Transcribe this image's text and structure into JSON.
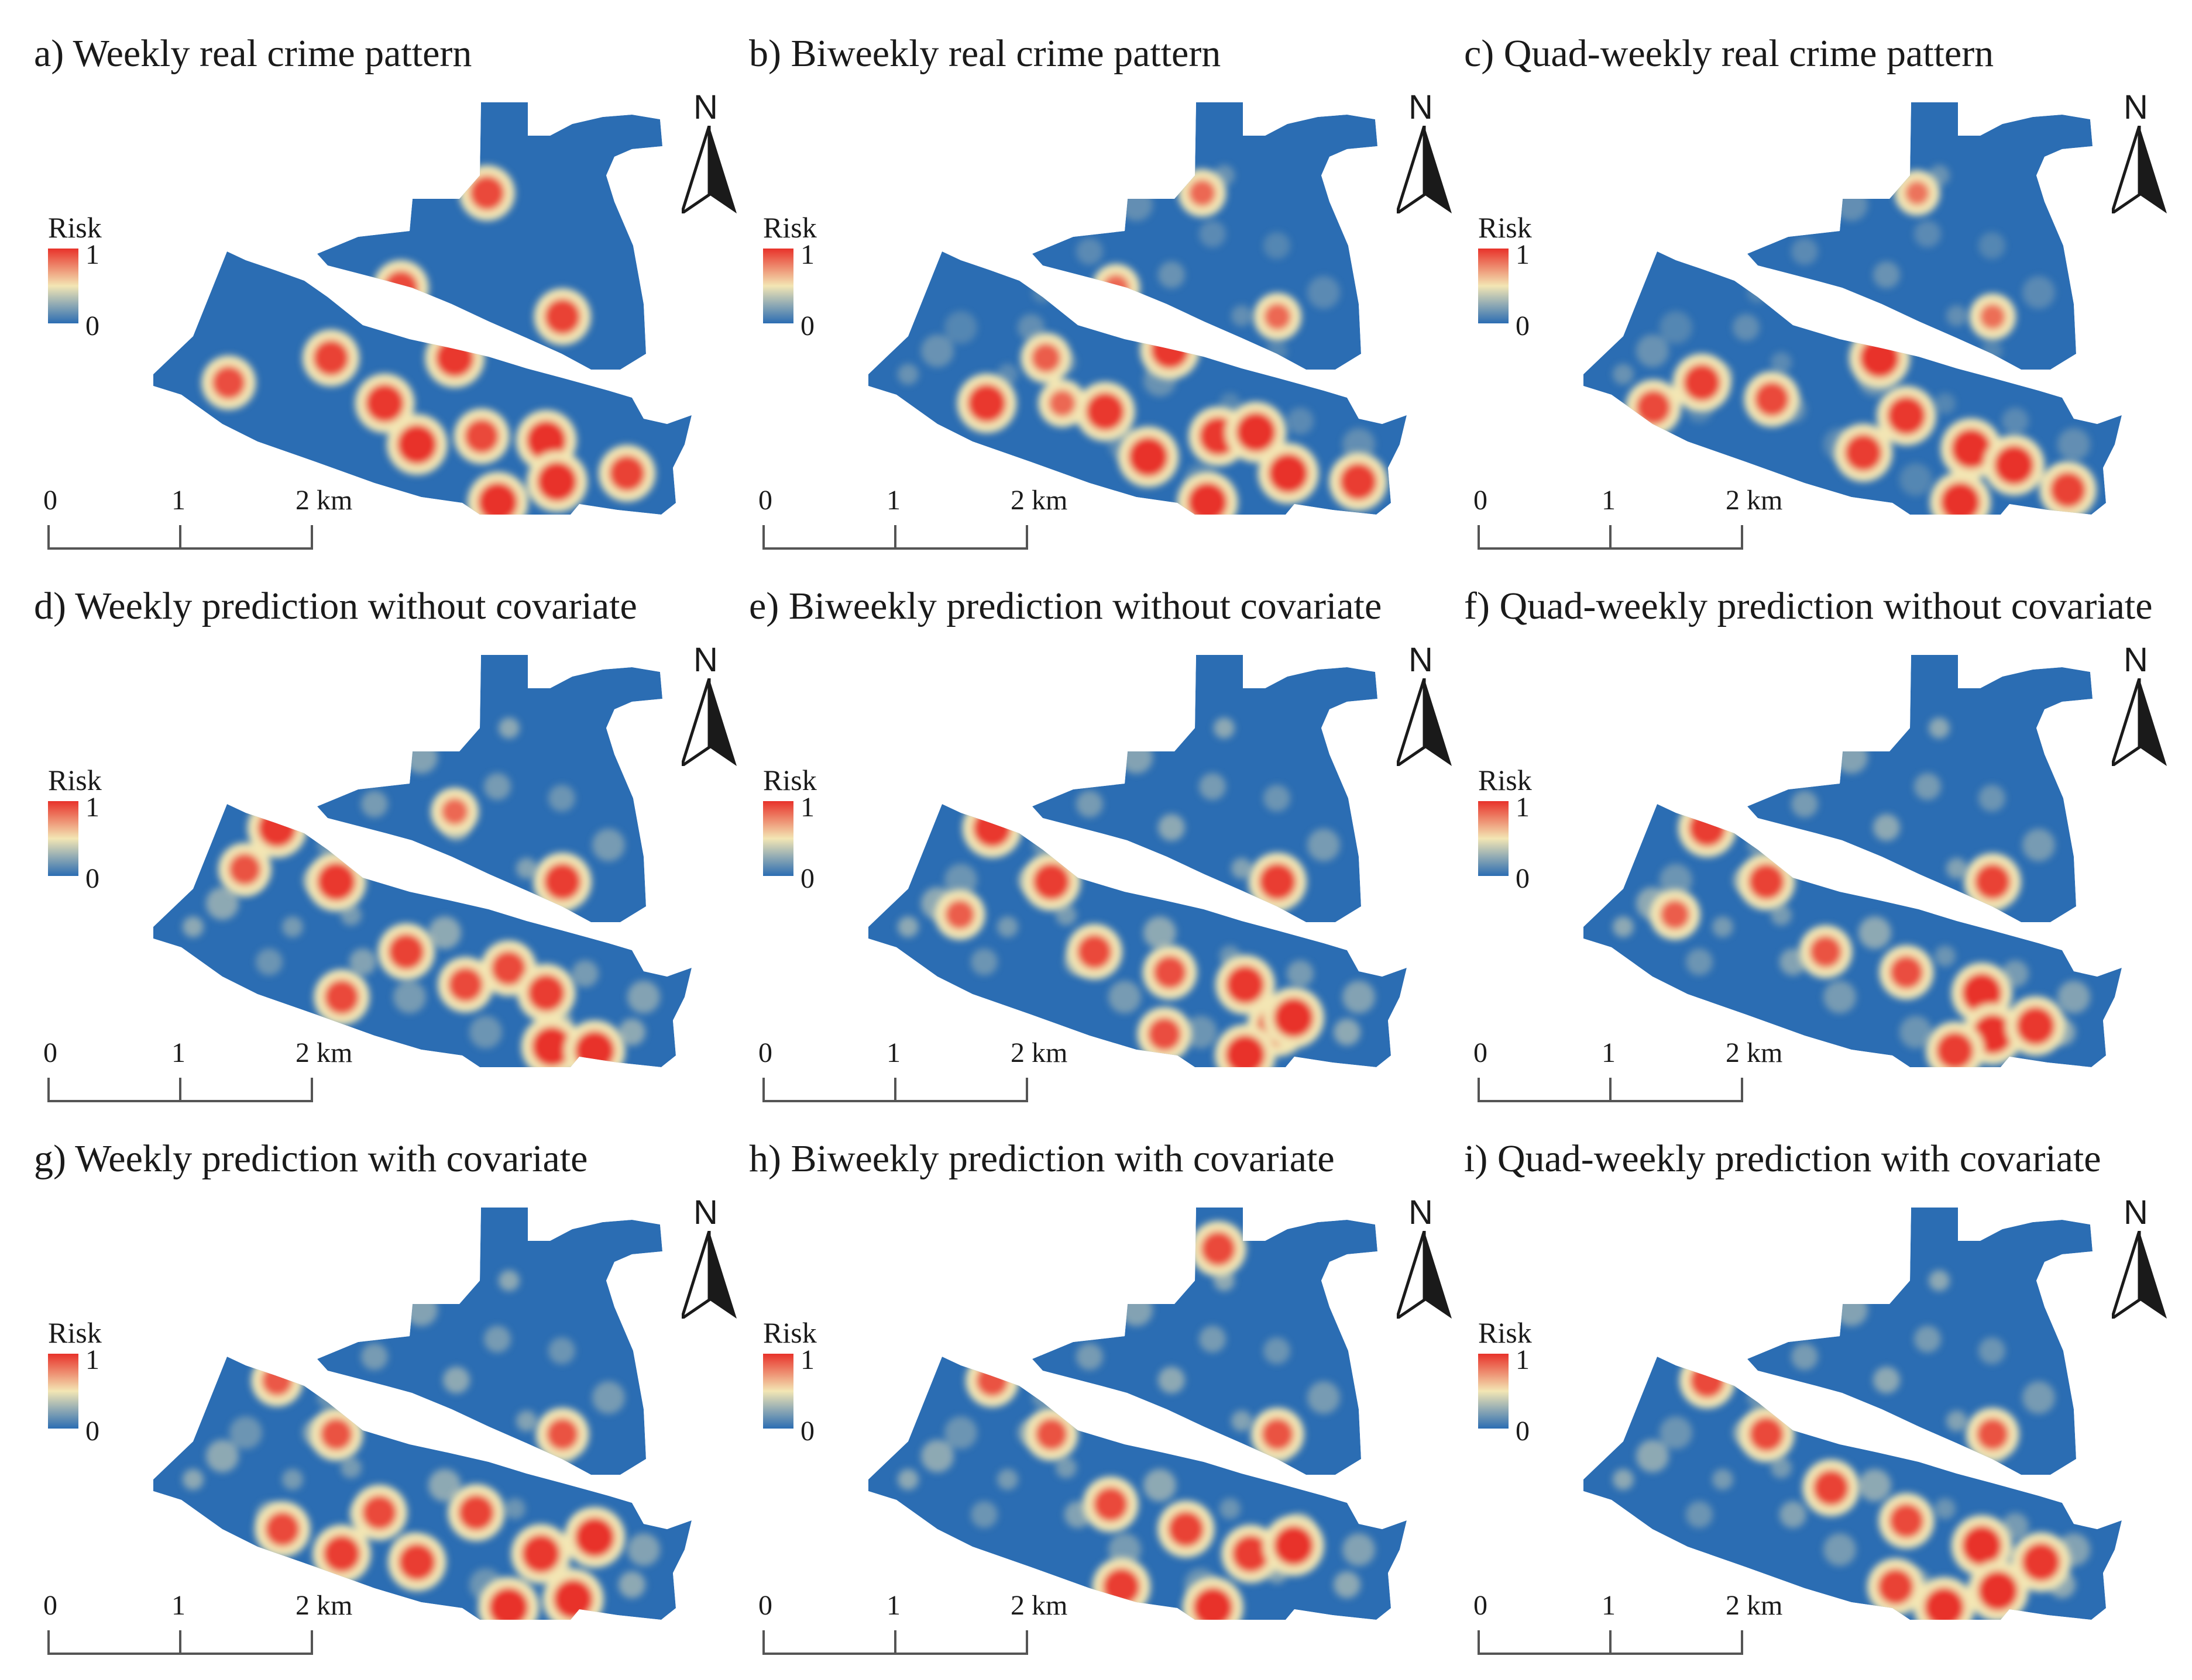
{
  "panels": [
    {
      "id": "a",
      "title": "a) Weekly real crime pattern",
      "pattern": "sparse_real",
      "hotspots": [
        [
          0.62,
          0.22,
          0.8
        ],
        [
          0.46,
          0.45,
          0.8
        ],
        [
          0.76,
          0.52,
          0.85
        ],
        [
          0.33,
          0.62,
          0.85
        ],
        [
          0.56,
          0.62,
          0.95
        ],
        [
          0.43,
          0.73,
          0.95
        ],
        [
          0.14,
          0.68,
          0.75
        ],
        [
          0.49,
          0.83,
          1.0
        ],
        [
          0.61,
          0.81,
          0.8
        ],
        [
          0.73,
          0.82,
          1.0
        ],
        [
          0.75,
          0.92,
          1.0
        ],
        [
          0.64,
          0.97,
          1.0
        ],
        [
          0.88,
          0.9,
          0.85
        ]
      ]
    },
    {
      "id": "b",
      "title": "b) Biweekly real crime pattern",
      "pattern": "dense_real",
      "hotspots": [
        [
          0.62,
          0.22,
          0.5
        ],
        [
          0.46,
          0.45,
          0.5
        ],
        [
          0.76,
          0.52,
          0.5
        ],
        [
          0.33,
          0.62,
          0.6
        ],
        [
          0.22,
          0.73,
          0.95
        ],
        [
          0.56,
          0.6,
          0.95
        ],
        [
          0.44,
          0.75,
          0.95
        ],
        [
          0.52,
          0.86,
          1.0
        ],
        [
          0.65,
          0.81,
          0.95
        ],
        [
          0.72,
          0.8,
          1.0
        ],
        [
          0.78,
          0.9,
          1.0
        ],
        [
          0.63,
          0.97,
          1.0
        ],
        [
          0.91,
          0.92,
          0.9
        ],
        [
          0.36,
          0.73,
          0.5
        ]
      ]
    },
    {
      "id": "c",
      "title": "c) Quad-weekly real crime pattern",
      "pattern": "dense_real",
      "hotspots": [
        [
          0.62,
          0.22,
          0.4
        ],
        [
          0.76,
          0.52,
          0.45
        ],
        [
          0.22,
          0.68,
          0.9
        ],
        [
          0.35,
          0.72,
          0.8
        ],
        [
          0.55,
          0.62,
          1.0
        ],
        [
          0.6,
          0.76,
          0.95
        ],
        [
          0.72,
          0.84,
          1.0
        ],
        [
          0.8,
          0.88,
          1.0
        ],
        [
          0.7,
          0.97,
          1.0
        ],
        [
          0.52,
          0.85,
          0.9
        ],
        [
          0.13,
          0.74,
          0.8
        ],
        [
          0.9,
          0.94,
          0.85
        ]
      ]
    },
    {
      "id": "d",
      "title": "d) Weekly prediction without covariate",
      "pattern": "pred",
      "hotspots": [
        [
          0.23,
          0.42,
          0.95
        ],
        [
          0.34,
          0.55,
          0.95
        ],
        [
          0.76,
          0.55,
          0.9
        ],
        [
          0.47,
          0.72,
          0.85
        ],
        [
          0.58,
          0.8,
          0.8
        ],
        [
          0.66,
          0.76,
          0.8
        ],
        [
          0.73,
          0.82,
          0.9
        ],
        [
          0.74,
          0.95,
          1.0
        ],
        [
          0.82,
          0.96,
          1.0
        ],
        [
          0.35,
          0.83,
          0.8
        ],
        [
          0.17,
          0.52,
          0.7
        ],
        [
          0.56,
          0.38,
          0.5
        ]
      ]
    },
    {
      "id": "e",
      "title": "e) Biweekly prediction without covariate",
      "pattern": "pred",
      "hotspots": [
        [
          0.23,
          0.42,
          0.95
        ],
        [
          0.34,
          0.55,
          0.9
        ],
        [
          0.76,
          0.55,
          0.9
        ],
        [
          0.42,
          0.72,
          0.8
        ],
        [
          0.56,
          0.77,
          0.75
        ],
        [
          0.7,
          0.8,
          0.95
        ],
        [
          0.76,
          0.9,
          1.0
        ],
        [
          0.7,
          0.97,
          1.0
        ],
        [
          0.79,
          0.88,
          1.0
        ],
        [
          0.55,
          0.92,
          0.75
        ],
        [
          0.17,
          0.63,
          0.6
        ]
      ]
    },
    {
      "id": "f",
      "title": "f) Quad-weekly prediction without covariate",
      "pattern": "pred",
      "hotspots": [
        [
          0.23,
          0.42,
          0.9
        ],
        [
          0.34,
          0.55,
          0.85
        ],
        [
          0.76,
          0.55,
          0.85
        ],
        [
          0.45,
          0.72,
          0.7
        ],
        [
          0.6,
          0.77,
          0.75
        ],
        [
          0.74,
          0.82,
          1.0
        ],
        [
          0.76,
          0.92,
          1.0
        ],
        [
          0.84,
          0.9,
          0.95
        ],
        [
          0.69,
          0.96,
          0.9
        ],
        [
          0.17,
          0.63,
          0.6
        ]
      ]
    },
    {
      "id": "g",
      "title": "g) Weekly prediction with covariate",
      "pattern": "pred",
      "hotspots": [
        [
          0.23,
          0.42,
          0.65
        ],
        [
          0.34,
          0.55,
          0.7
        ],
        [
          0.76,
          0.55,
          0.7
        ],
        [
          0.42,
          0.74,
          0.8
        ],
        [
          0.49,
          0.86,
          0.9
        ],
        [
          0.6,
          0.74,
          0.85
        ],
        [
          0.72,
          0.84,
          0.95
        ],
        [
          0.82,
          0.8,
          1.0
        ],
        [
          0.78,
          0.95,
          1.0
        ],
        [
          0.66,
          0.97,
          1.0
        ],
        [
          0.35,
          0.84,
          0.9
        ],
        [
          0.24,
          0.78,
          0.8
        ]
      ]
    },
    {
      "id": "h",
      "title": "h) Biweekly prediction with covariate",
      "pattern": "pred",
      "hotspots": [
        [
          0.23,
          0.42,
          0.7
        ],
        [
          0.34,
          0.55,
          0.7
        ],
        [
          0.76,
          0.55,
          0.7
        ],
        [
          0.45,
          0.72,
          0.8
        ],
        [
          0.59,
          0.78,
          0.85
        ],
        [
          0.71,
          0.84,
          0.9
        ],
        [
          0.79,
          0.82,
          1.0
        ],
        [
          0.64,
          0.97,
          1.0
        ],
        [
          0.47,
          0.92,
          0.9
        ],
        [
          0.65,
          0.1,
          0.8
        ]
      ]
    },
    {
      "id": "i",
      "title": "i) Quad-weekly prediction with covariate",
      "pattern": "pred",
      "hotspots": [
        [
          0.23,
          0.42,
          0.8
        ],
        [
          0.34,
          0.55,
          0.8
        ],
        [
          0.76,
          0.55,
          0.7
        ],
        [
          0.46,
          0.68,
          0.85
        ],
        [
          0.6,
          0.76,
          0.8
        ],
        [
          0.74,
          0.82,
          1.0
        ],
        [
          0.77,
          0.93,
          1.0
        ],
        [
          0.85,
          0.86,
          0.95
        ],
        [
          0.67,
          0.97,
          1.0
        ],
        [
          0.58,
          0.92,
          0.85
        ]
      ]
    }
  ],
  "legend": {
    "title": "Risk",
    "max": "1",
    "min": "0"
  },
  "north": "N",
  "scalebar": {
    "t0": "0",
    "t1": "1",
    "t2": "2 km"
  },
  "colors": {
    "low": "#2b6db3",
    "mid": "#f3e6b4",
    "high": "#e8322a",
    "outline": "#1a1a1a"
  }
}
